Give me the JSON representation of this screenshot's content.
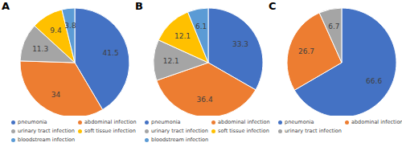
{
  "chart_data": [
    {
      "type": "pie",
      "title": "A",
      "categories": [
        "pneumonia",
        "abdominal infection",
        "urinary tract infection",
        "soft tissue infection",
        "bloodstream infection"
      ],
      "values": [
        41.5,
        34,
        11.3,
        9.4,
        3.8
      ],
      "colors": [
        "#4472c4",
        "#ed7d31",
        "#a5a5a5",
        "#ffc000",
        "#5b9bd5"
      ],
      "data_labels": true,
      "legend": "bottom"
    },
    {
      "type": "pie",
      "title": "B",
      "categories": [
        "pneumonia",
        "abdominal infection",
        "urinary tract infection",
        "soft tissue infection",
        "bloodstream infection"
      ],
      "values": [
        33.3,
        36.4,
        12.1,
        12.1,
        6.1
      ],
      "colors": [
        "#4472c4",
        "#ed7d31",
        "#a5a5a5",
        "#ffc000",
        "#5b9bd5"
      ],
      "data_labels": true,
      "legend": "bottom"
    },
    {
      "type": "pie",
      "title": "C",
      "categories": [
        "pneumonia",
        "abdominal infection",
        "urinary tract infection"
      ],
      "values": [
        66.6,
        26.7,
        6.7
      ],
      "colors": [
        "#4472c4",
        "#ed7d31",
        "#a5a5a5"
      ],
      "data_labels": true,
      "legend": "bottom"
    }
  ]
}
